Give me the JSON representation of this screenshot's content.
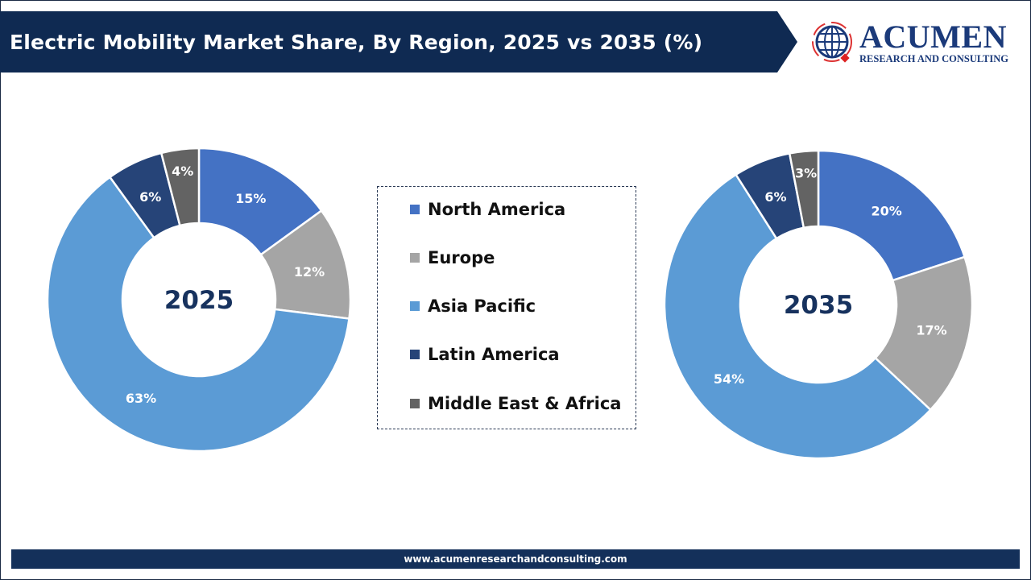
{
  "header": {
    "title": "Electric Mobility Market Share, By Region, 2025 vs 2035 (%)"
  },
  "logo": {
    "word": "ACUMEN",
    "sub": "RESEARCH AND CONSULTING"
  },
  "footer": {
    "url": "www.acumenresearchandconsulting.com"
  },
  "colors": {
    "header": "#0f2a52",
    "north_america": "#4472C4",
    "europe": "#A5A5A5",
    "asia_pacific": "#5B9BD5",
    "latin_america": "#264478",
    "middle_east_africa": "#636363"
  },
  "chart_data": [
    {
      "type": "donut",
      "center_label": "2025",
      "categories": [
        "North America",
        "Europe",
        "Asia Pacific",
        "Latin America",
        "Middle East & Africa"
      ],
      "values": [
        15,
        12,
        63,
        6,
        4
      ],
      "labels": [
        "15%",
        "12%",
        "63%",
        "6%",
        "4%"
      ]
    },
    {
      "type": "donut",
      "center_label": "2035",
      "categories": [
        "North America",
        "Europe",
        "Asia Pacific",
        "Latin America",
        "Middle East & Africa"
      ],
      "values": [
        20,
        17,
        54,
        6,
        3
      ],
      "labels": [
        "20%",
        "17%",
        "54%",
        "6%",
        "3%"
      ]
    }
  ],
  "legend": {
    "placement": "center",
    "items": [
      {
        "label": "North America",
        "color": "#4472C4"
      },
      {
        "label": "Europe",
        "color": "#A5A5A5"
      },
      {
        "label": "Asia Pacific",
        "color": "#5B9BD5"
      },
      {
        "label": "Latin America",
        "color": "#264478"
      },
      {
        "label": "Middle East & Africa",
        "color": "#636363"
      }
    ]
  }
}
